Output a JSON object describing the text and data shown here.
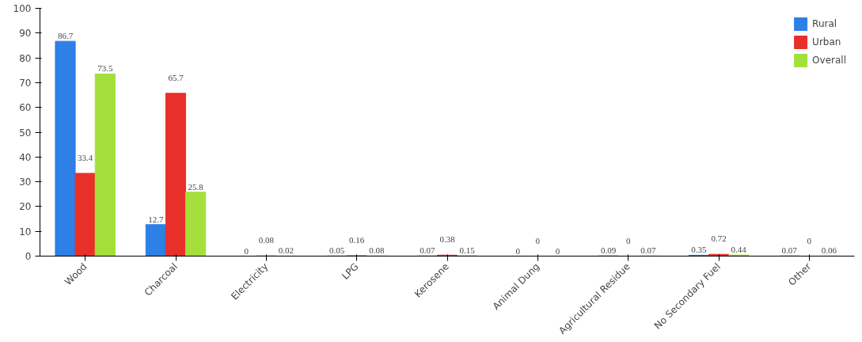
{
  "chart_data": {
    "type": "bar",
    "categories": [
      "Wood",
      "Charcoal",
      "Electricity",
      "LPG",
      "Kerosene",
      "Animal Dung",
      "Agricultural Residue",
      "No Secondary Fuel",
      "Other"
    ],
    "series": [
      {
        "name": "Rural",
        "color": "#2e7fe6",
        "values": [
          86.7,
          12.7,
          0,
          0.05,
          0.07,
          0,
          0.09,
          0.35,
          0.07
        ]
      },
      {
        "name": "Urban",
        "color": "#e8302a",
        "values": [
          33.4,
          65.7,
          0.08,
          0.16,
          0.38,
          0,
          0,
          0.72,
          0
        ]
      },
      {
        "name": "Overall",
        "color": "#a4e03c",
        "values": [
          73.5,
          25.8,
          0.02,
          0.08,
          0.15,
          0,
          0.07,
          0.44,
          0.06
        ]
      }
    ],
    "ylim": [
      0,
      100
    ],
    "yticks": [
      0,
      10,
      20,
      30,
      40,
      50,
      60,
      70,
      80,
      90,
      100
    ],
    "data_labels": true,
    "legend": "top right",
    "grid": false
  }
}
